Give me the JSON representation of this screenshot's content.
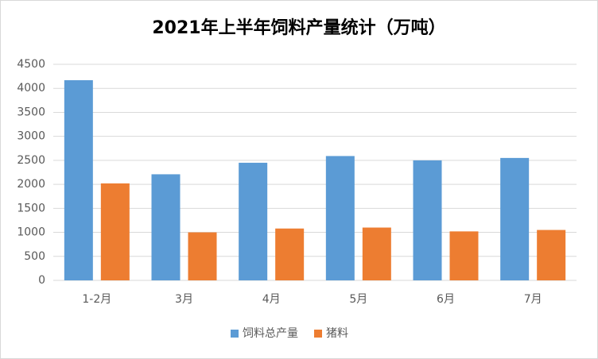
{
  "chart_data": {
    "type": "bar",
    "title": "2021年上半年饲料产量统计（万吨）",
    "categories": [
      "1-2月",
      "3月",
      "4月",
      "5月",
      "6月",
      "7月"
    ],
    "series": [
      {
        "name": "饲料总产量",
        "color": "#5b9bd5",
        "values": [
          4170,
          2210,
          2450,
          2590,
          2500,
          2550
        ]
      },
      {
        "name": "猪料",
        "color": "#ed7d31",
        "values": [
          2020,
          1000,
          1080,
          1100,
          1020,
          1050
        ]
      }
    ],
    "ylim": [
      0,
      4500
    ],
    "yticks": [
      0,
      500,
      1000,
      1500,
      2000,
      2500,
      3000,
      3500,
      4000,
      4500
    ],
    "grid": true,
    "legend": "bottom"
  }
}
